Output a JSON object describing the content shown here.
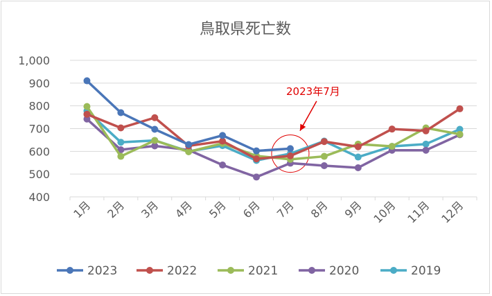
{
  "chart_data": {
    "type": "line",
    "title": "鳥取県死亡数",
    "categories": [
      "1月",
      "2月",
      "3月",
      "4月",
      "5月",
      "6月",
      "7月",
      "8月",
      "9月",
      "10月",
      "11月",
      "12月"
    ],
    "ylim": [
      400,
      1000
    ],
    "yticks": [
      400,
      500,
      600,
      700,
      800,
      900,
      1000
    ],
    "ytick_labels": [
      "400",
      "500",
      "600",
      "700",
      "800",
      "900",
      "1,000"
    ],
    "grid": true,
    "legend_position": "bottom",
    "series": [
      {
        "name": "2023",
        "color": "#4a76b8",
        "values": [
          910,
          770,
          697,
          630,
          670,
          602,
          612,
          null,
          null,
          null,
          null,
          null
        ]
      },
      {
        "name": "2022",
        "color": "#c0504d",
        "values": [
          763,
          703,
          748,
          624,
          645,
          567,
          580,
          643,
          620,
          698,
          690,
          787
        ]
      },
      {
        "name": "2021",
        "color": "#9bbb59",
        "values": [
          797,
          578,
          648,
          598,
          635,
          580,
          565,
          578,
          632,
          622,
          703,
          675
        ]
      },
      {
        "name": "2020",
        "color": "#8064a2",
        "values": [
          742,
          607,
          624,
          606,
          540,
          487,
          548,
          537,
          528,
          605,
          605,
          673
        ]
      },
      {
        "name": "2019",
        "color": "#4bacc6",
        "values": [
          778,
          640,
          648,
          600,
          625,
          560,
          590,
          645,
          575,
          622,
          632,
          697
        ]
      }
    ],
    "annotation": {
      "text": "2023年7月",
      "category": "7月",
      "value": 590,
      "label_category": "8月",
      "label_value": 848
    }
  }
}
